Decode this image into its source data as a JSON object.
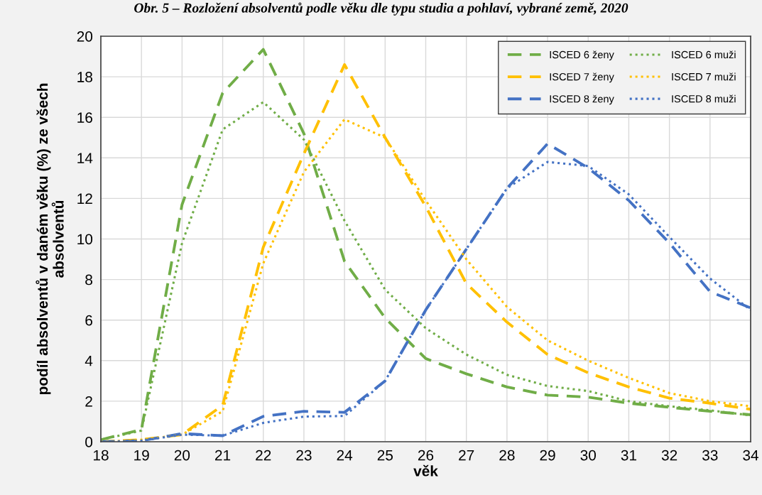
{
  "chart_data": {
    "type": "line",
    "title": "Obr. 5 – Rozložení absolventů podle věku dle typu studia a pohlaví, vybrané země, 2020",
    "xlabel": "věk",
    "ylabel": "podíl absolventů v daném věku (%) ze všech\nabsolventů",
    "x": [
      18,
      19,
      20,
      21,
      22,
      23,
      24,
      25,
      26,
      27,
      28,
      29,
      30,
      31,
      32,
      33,
      34
    ],
    "series": [
      {
        "name": "ISCED 6 ženy",
        "color": "#70ad47",
        "line_style": "dashed",
        "values": [
          0.1,
          0.6,
          11.7,
          17.2,
          19.35,
          15.2,
          8.9,
          6.1,
          4.1,
          3.35,
          2.7,
          2.3,
          2.2,
          1.9,
          1.7,
          1.5,
          1.33
        ]
      },
      {
        "name": "ISCED 7 ženy",
        "color": "#ffc000",
        "line_style": "dashed",
        "values": [
          0,
          0.1,
          0.35,
          1.8,
          9.6,
          14.2,
          18.6,
          15.0,
          11.6,
          7.8,
          5.9,
          4.3,
          3.4,
          2.7,
          2.15,
          1.9,
          1.6
        ]
      },
      {
        "name": "ISCED 8 ženy",
        "color": "#4472c4",
        "line_style": "dashed",
        "values": [
          0,
          0.05,
          0.4,
          0.3,
          1.25,
          1.5,
          1.45,
          3.0,
          6.5,
          9.5,
          12.5,
          14.7,
          13.5,
          11.9,
          9.8,
          7.4,
          6.6
        ]
      },
      {
        "name": "ISCED 6 muži",
        "color": "#70ad47",
        "line_style": "dotted",
        "values": [
          0.1,
          0.55,
          9.8,
          15.4,
          16.75,
          14.9,
          10.9,
          7.5,
          5.6,
          4.3,
          3.3,
          2.75,
          2.5,
          2.0,
          1.75,
          1.55,
          1.3
        ]
      },
      {
        "name": "ISCED 7 muži",
        "color": "#ffc000",
        "line_style": "dotted",
        "values": [
          0,
          0.1,
          0.35,
          1.5,
          8.8,
          13.3,
          15.9,
          15.0,
          11.9,
          9.0,
          6.65,
          5.0,
          4.0,
          3.15,
          2.4,
          2.0,
          1.75
        ]
      },
      {
        "name": "ISCED 8 muži",
        "color": "#4472c4",
        "line_style": "dotted",
        "values": [
          0,
          0.05,
          0.35,
          0.3,
          0.93,
          1.24,
          1.27,
          3.0,
          6.5,
          9.5,
          12.5,
          13.8,
          13.6,
          12.2,
          10.1,
          8.05,
          6.5
        ]
      }
    ],
    "xlim": [
      18,
      34
    ],
    "xticks": [
      18,
      19,
      20,
      21,
      22,
      23,
      24,
      25,
      26,
      27,
      28,
      29,
      30,
      31,
      32,
      33,
      34
    ],
    "ylim": [
      0,
      20
    ],
    "yticks": [
      0,
      2,
      4,
      6,
      8,
      10,
      12,
      14,
      16,
      18,
      20
    ],
    "grid": true,
    "legend": "top right",
    "marker": "none"
  }
}
